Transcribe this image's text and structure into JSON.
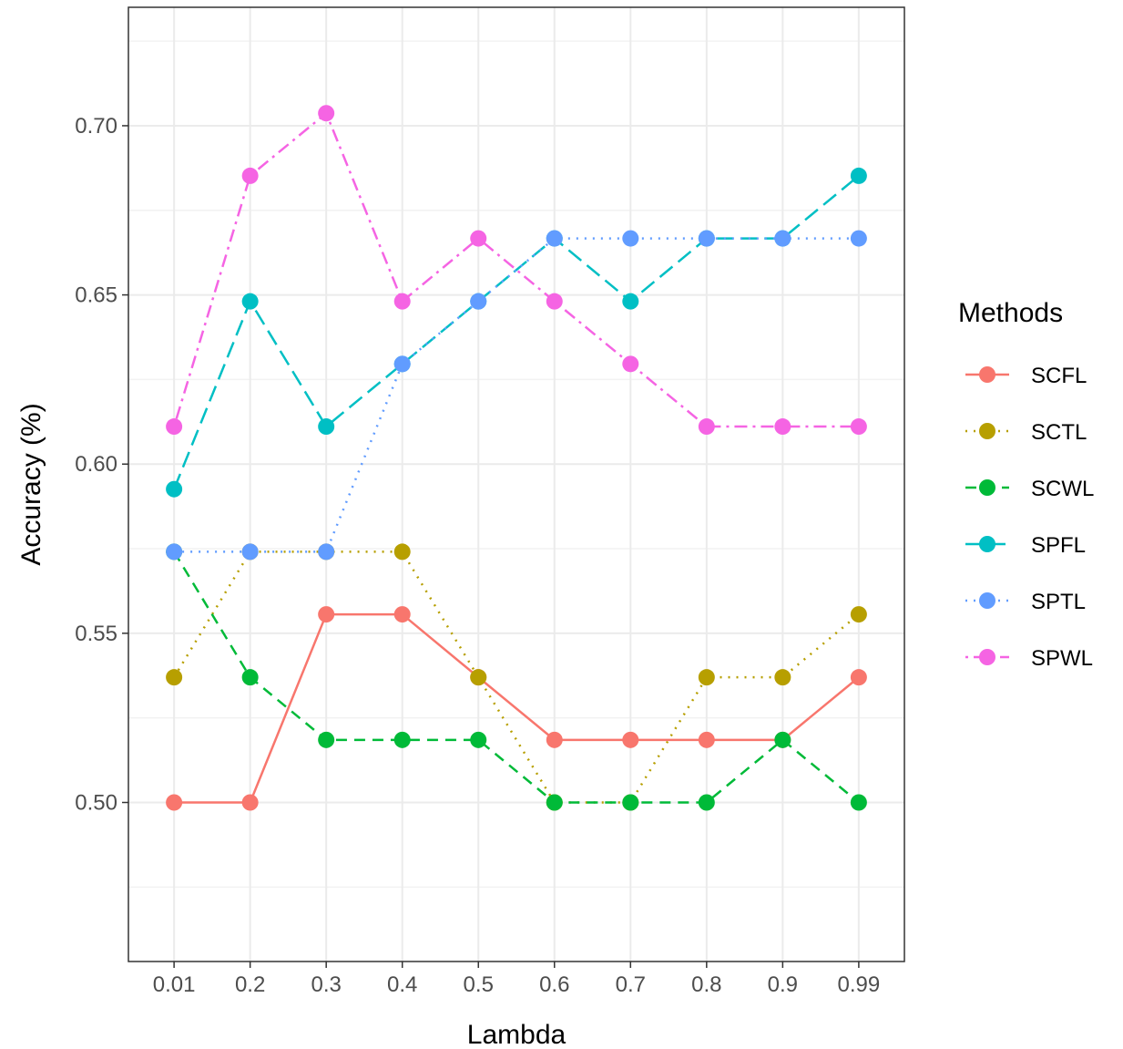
{
  "chart_data": {
    "type": "line",
    "categories": [
      "0.01",
      "0.2",
      "0.3",
      "0.4",
      "0.5",
      "0.6",
      "0.7",
      "0.8",
      "0.9",
      "0.99"
    ],
    "xlabel": "Lambda",
    "ylabel": "Accuracy (%)",
    "ylim": [
      0.453,
      0.735
    ],
    "yticks": [
      0.5,
      0.55,
      0.6,
      0.65,
      0.7
    ],
    "ytick_labels": [
      "0.50",
      "0.55",
      "0.60",
      "0.65",
      "0.70"
    ],
    "grid": true,
    "legend": {
      "title": "Methods",
      "position": "right"
    },
    "series": [
      {
        "name": "SCFL",
        "color": "#F8766D",
        "dash": "solid",
        "values": [
          0.5,
          0.5,
          0.5556,
          0.5556,
          0.537,
          0.5185,
          0.5185,
          0.5185,
          0.5185,
          0.537
        ]
      },
      {
        "name": "SCTL",
        "color": "#B79F00",
        "dash": "dotted",
        "values": [
          0.537,
          0.5741,
          0.5741,
          0.5741,
          0.537,
          0.5,
          0.5,
          0.537,
          0.537,
          0.5556
        ]
      },
      {
        "name": "SCWL",
        "color": "#00BA38",
        "dash": "dashed",
        "values": [
          0.5741,
          0.537,
          0.5185,
          0.5185,
          0.5185,
          0.5,
          0.5,
          0.5,
          0.5185,
          0.5
        ]
      },
      {
        "name": "SPFL",
        "color": "#00BFC4",
        "dash": "longdash",
        "values": [
          0.5926,
          0.6481,
          0.6111,
          0.6296,
          0.6481,
          0.6667,
          0.6481,
          0.6667,
          0.6667,
          0.6852
        ]
      },
      {
        "name": "SPTL",
        "color": "#619CFF",
        "dash": "dotted",
        "values": [
          0.5741,
          0.5741,
          0.5741,
          0.6296,
          0.6481,
          0.6667,
          0.6667,
          0.6667,
          0.6667,
          0.6667
        ]
      },
      {
        "name": "SPWL",
        "color": "#F564E3",
        "dash": "dotdash",
        "values": [
          0.6111,
          0.6852,
          0.7037,
          0.6481,
          0.6667,
          0.6481,
          0.6296,
          0.6111,
          0.6111,
          0.6111
        ]
      }
    ]
  }
}
